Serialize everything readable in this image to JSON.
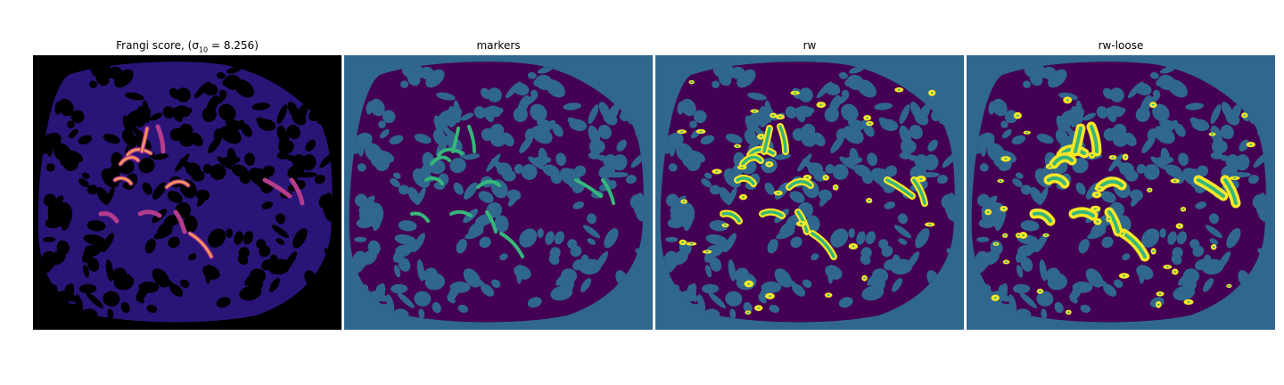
{
  "panels": [
    {
      "title_main": "Frangi score, (σ",
      "title_sub": "10",
      "title_tail": " = 8.256)",
      "colormap": "magma"
    },
    {
      "title": "markers",
      "colormap": "viridis"
    },
    {
      "title": "rw",
      "colormap": "viridis"
    },
    {
      "title": "rw-loose",
      "colormap": "viridis"
    }
  ],
  "colors": {
    "frangi_background": "#000000",
    "frangi_tissue": "#2a1478",
    "frangi_vessel_mid": "#b43c8c",
    "frangi_vessel_high": "#fca050",
    "label_background": "#30678d",
    "label_tissue": "#440154",
    "label_marker": "#35b779",
    "label_vessel": "#fde725"
  }
}
